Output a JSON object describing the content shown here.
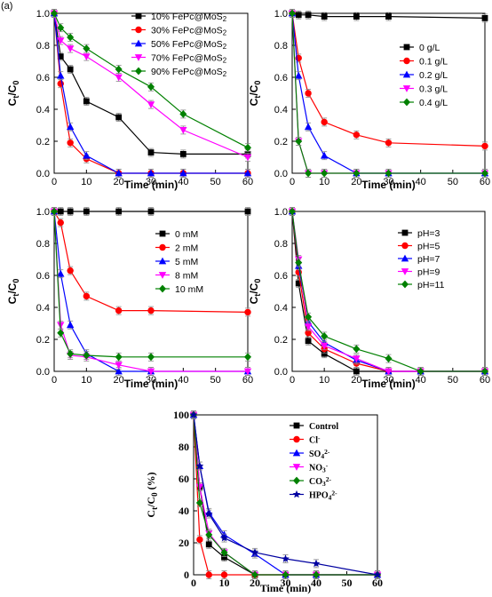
{
  "panel_label": "(a)",
  "colors": {
    "black": "#000000",
    "red": "#ff0000",
    "blue": "#0000ff",
    "magenta": "#ff00ff",
    "green": "#008000",
    "navy": "#0000a0"
  },
  "chart_data": [
    {
      "type": "line",
      "xlabel": "Time (min)",
      "ylabel": "Ct/C0",
      "xlim": [
        0,
        60
      ],
      "ylim": [
        0,
        1.0
      ],
      "xticks": [
        0,
        10,
        20,
        30,
        40,
        50,
        60
      ],
      "yticks": [
        0.0,
        0.2,
        0.4,
        0.6,
        0.8,
        1.0
      ],
      "legend_position": "top-right",
      "series": [
        {
          "name": "10% FePc@MoS2",
          "color": "#000000",
          "marker": "square",
          "x": [
            0,
            2,
            5,
            10,
            20,
            30,
            40,
            60
          ],
          "y": [
            1.0,
            0.73,
            0.65,
            0.45,
            0.35,
            0.13,
            0.12,
            0.12
          ]
        },
        {
          "name": "30% FePc@MoS2",
          "color": "#ff0000",
          "marker": "circle",
          "x": [
            0,
            2,
            5,
            10,
            20,
            30,
            40,
            60
          ],
          "y": [
            1.0,
            0.56,
            0.19,
            0.09,
            0.0,
            0.0,
            0.0,
            0.0
          ]
        },
        {
          "name": "50% FePc@MoS2",
          "color": "#0000ff",
          "marker": "triangle-up",
          "x": [
            0,
            2,
            5,
            10,
            20,
            30,
            40,
            60
          ],
          "y": [
            1.0,
            0.61,
            0.29,
            0.11,
            0.0,
            0.0,
            0.0,
            0.0
          ]
        },
        {
          "name": "70% FePc@MoS2",
          "color": "#ff00ff",
          "marker": "triangle-down",
          "x": [
            0,
            2,
            5,
            10,
            20,
            30,
            40,
            60
          ],
          "y": [
            1.0,
            0.83,
            0.78,
            0.73,
            0.6,
            0.43,
            0.27,
            0.1
          ]
        },
        {
          "name": "90% FePc@MoS2",
          "color": "#008000",
          "marker": "diamond",
          "x": [
            0,
            2,
            5,
            10,
            20,
            30,
            40,
            60
          ],
          "y": [
            1.0,
            0.91,
            0.85,
            0.78,
            0.65,
            0.54,
            0.37,
            0.16
          ]
        }
      ]
    },
    {
      "type": "line",
      "xlabel": "Time (min)",
      "ylabel": "Ct/C0",
      "xlim": [
        0,
        60
      ],
      "ylim": [
        0,
        1.0
      ],
      "xticks": [
        0,
        10,
        20,
        30,
        40,
        50,
        60
      ],
      "yticks": [
        0.0,
        0.2,
        0.4,
        0.6,
        0.8,
        1.0
      ],
      "legend_position": "right",
      "series": [
        {
          "name": "0 g/L",
          "color": "#000000",
          "marker": "square",
          "x": [
            0,
            2,
            5,
            10,
            20,
            30,
            60
          ],
          "y": [
            1.0,
            0.99,
            0.99,
            0.98,
            0.98,
            0.98,
            0.97
          ]
        },
        {
          "name": "0.1 g/L",
          "color": "#ff0000",
          "marker": "circle",
          "x": [
            0,
            2,
            5,
            10,
            20,
            30,
            60
          ],
          "y": [
            1.0,
            0.72,
            0.5,
            0.32,
            0.24,
            0.19,
            0.17
          ]
        },
        {
          "name": "0.2 g/L",
          "color": "#0000ff",
          "marker": "triangle-up",
          "x": [
            0,
            2,
            5,
            10,
            20,
            30,
            60
          ],
          "y": [
            1.0,
            0.61,
            0.29,
            0.11,
            0.0,
            0.0,
            0.0
          ]
        },
        {
          "name": "0.3 g/L",
          "color": "#ff00ff",
          "marker": "triangle-down",
          "x": [
            0,
            2,
            5,
            10,
            20,
            30,
            60
          ],
          "y": [
            1.0,
            0.2,
            0.0,
            0.0,
            0.0,
            0.0,
            0.0
          ]
        },
        {
          "name": "0.4 g/L",
          "color": "#008000",
          "marker": "diamond",
          "x": [
            0,
            2,
            5,
            10,
            20,
            30,
            60
          ],
          "y": [
            1.0,
            0.2,
            0.0,
            0.0,
            0.0,
            0.0,
            0.0
          ]
        }
      ]
    },
    {
      "type": "line",
      "xlabel": "Time (min)",
      "ylabel": "Ct/C0",
      "xlim": [
        0,
        60
      ],
      "ylim": [
        0,
        1.0
      ],
      "xticks": [
        0,
        10,
        20,
        30,
        40,
        50,
        60
      ],
      "yticks": [
        0.0,
        0.2,
        0.4,
        0.6,
        0.8,
        1.0
      ],
      "legend_position": "right",
      "series": [
        {
          "name": "0 mM",
          "color": "#000000",
          "marker": "square",
          "x": [
            0,
            2,
            5,
            10,
            20,
            30,
            60
          ],
          "y": [
            1.0,
            1.0,
            1.0,
            1.0,
            1.0,
            1.0,
            1.0
          ]
        },
        {
          "name": "2 mM",
          "color": "#ff0000",
          "marker": "circle",
          "x": [
            0,
            2,
            5,
            10,
            20,
            30,
            60
          ],
          "y": [
            1.0,
            0.93,
            0.63,
            0.47,
            0.38,
            0.38,
            0.37
          ]
        },
        {
          "name": "5 mM",
          "color": "#0000ff",
          "marker": "triangle-up",
          "x": [
            0,
            2,
            5,
            10,
            20,
            30,
            60
          ],
          "y": [
            1.0,
            0.61,
            0.29,
            0.11,
            0.0,
            0.0,
            0.0
          ]
        },
        {
          "name": "8 mM",
          "color": "#ff00ff",
          "marker": "triangle-down",
          "x": [
            0,
            2,
            5,
            10,
            20,
            30,
            60
          ],
          "y": [
            1.0,
            0.29,
            0.1,
            0.09,
            0.04,
            0.0,
            0.0
          ]
        },
        {
          "name": "10 mM",
          "color": "#008000",
          "marker": "diamond",
          "x": [
            0,
            2,
            5,
            10,
            20,
            30,
            60
          ],
          "y": [
            1.0,
            0.24,
            0.11,
            0.1,
            0.09,
            0.09,
            0.09
          ]
        }
      ]
    },
    {
      "type": "line",
      "xlabel": "Time (min)",
      "ylabel": "Ct/C0",
      "xlim": [
        0,
        60
      ],
      "ylim": [
        0,
        1.0
      ],
      "xticks": [
        0,
        10,
        20,
        30,
        40,
        50,
        60
      ],
      "yticks": [
        0.0,
        0.2,
        0.4,
        0.6,
        0.8,
        1.0
      ],
      "legend_position": "top-right",
      "series": [
        {
          "name": "pH=3",
          "color": "#000000",
          "marker": "square",
          "x": [
            0,
            2,
            5,
            10,
            20,
            30,
            40,
            60
          ],
          "y": [
            1.0,
            0.55,
            0.19,
            0.11,
            0.0,
            0.0,
            0.0,
            0.0
          ]
        },
        {
          "name": "pH=5",
          "color": "#ff0000",
          "marker": "circle",
          "x": [
            0,
            2,
            5,
            10,
            20,
            30,
            40,
            60
          ],
          "y": [
            1.0,
            0.62,
            0.24,
            0.14,
            0.05,
            0.0,
            0.0,
            0.0
          ]
        },
        {
          "name": "pH=7",
          "color": "#0000ff",
          "marker": "triangle-up",
          "x": [
            0,
            2,
            5,
            10,
            20,
            30,
            40,
            60
          ],
          "y": [
            1.0,
            0.66,
            0.31,
            0.18,
            0.07,
            0.0,
            0.0,
            0.0
          ]
        },
        {
          "name": "pH=9",
          "color": "#ff00ff",
          "marker": "triangle-down",
          "x": [
            0,
            2,
            5,
            10,
            20,
            30,
            40,
            60
          ],
          "y": [
            1.0,
            0.7,
            0.28,
            0.16,
            0.08,
            0.0,
            0.0,
            0.0
          ]
        },
        {
          "name": "pH=11",
          "color": "#008000",
          "marker": "diamond",
          "x": [
            0,
            2,
            5,
            10,
            20,
            30,
            40,
            60
          ],
          "y": [
            1.0,
            0.68,
            0.34,
            0.22,
            0.14,
            0.08,
            0.0,
            0.0
          ]
        }
      ]
    },
    {
      "type": "line",
      "xlabel": "Time (min)",
      "ylabel": "Ct/C0 (%)",
      "xlim": [
        0,
        60
      ],
      "ylim": [
        0,
        100
      ],
      "xticks": [
        0,
        10,
        20,
        30,
        40,
        50,
        60
      ],
      "yticks": [
        0,
        20,
        40,
        60,
        80,
        100
      ],
      "legend_position": "top-right",
      "series": [
        {
          "name": "Control",
          "color": "#000000",
          "marker": "square",
          "x": [
            0,
            2,
            5,
            10,
            20,
            30,
            40,
            60
          ],
          "y": [
            100,
            55,
            19,
            11,
            0,
            0,
            0,
            0
          ]
        },
        {
          "name": "Cl-",
          "color": "#ff0000",
          "marker": "circle",
          "x": [
            0,
            2,
            5,
            10,
            20,
            30,
            40,
            60
          ],
          "y": [
            100,
            22,
            0,
            0,
            0,
            0,
            0,
            0
          ]
        },
        {
          "name": "SO42-",
          "color": "#0000ff",
          "marker": "triangle-up",
          "x": [
            0,
            2,
            5,
            10,
            20,
            30,
            40,
            60
          ],
          "y": [
            100,
            68,
            39,
            25,
            13,
            0,
            0,
            0
          ]
        },
        {
          "name": "NO3-",
          "color": "#ff00ff",
          "marker": "triangle-down",
          "x": [
            0,
            2,
            5,
            10,
            20,
            30,
            40,
            60
          ],
          "y": [
            100,
            55,
            26,
            14,
            0,
            0,
            0,
            0
          ]
        },
        {
          "name": "CO32-",
          "color": "#008000",
          "marker": "diamond",
          "x": [
            0,
            2,
            5,
            10,
            20,
            30,
            40,
            60
          ],
          "y": [
            100,
            45,
            25,
            14,
            0,
            0,
            0,
            0
          ]
        },
        {
          "name": "HPO42-",
          "color": "#0000a0",
          "marker": "star",
          "x": [
            0,
            2,
            5,
            10,
            20,
            30,
            40,
            60
          ],
          "y": [
            100,
            68,
            38,
            23,
            14,
            10,
            7,
            0
          ]
        }
      ]
    }
  ],
  "legend_labels": [
    [
      [
        {
          "t": "10% FePc@MoS"
        },
        {
          "t": "2",
          "sub": true
        }
      ],
      [
        {
          "t": "30% FePc@MoS"
        },
        {
          "t": "2",
          "sub": true
        }
      ],
      [
        {
          "t": "50% FePc@MoS"
        },
        {
          "t": "2",
          "sub": true
        }
      ],
      [
        {
          "t": "70% FePc@MoS"
        },
        {
          "t": "2",
          "sub": true
        }
      ],
      [
        {
          "t": "90% FePc@MoS"
        },
        {
          "t": "2",
          "sub": true
        }
      ]
    ],
    [
      [
        {
          "t": "0 g/L"
        }
      ],
      [
        {
          "t": "0.1 g/L"
        }
      ],
      [
        {
          "t": "0.2 g/L"
        }
      ],
      [
        {
          "t": "0.3 g/L"
        }
      ],
      [
        {
          "t": "0.4 g/L"
        }
      ]
    ],
    [
      [
        {
          "t": "0 mM"
        }
      ],
      [
        {
          "t": "2 mM"
        }
      ],
      [
        {
          "t": "5 mM"
        }
      ],
      [
        {
          "t": "8 mM"
        }
      ],
      [
        {
          "t": "10 mM"
        }
      ]
    ],
    [
      [
        {
          "t": "pH=3"
        }
      ],
      [
        {
          "t": "pH=5"
        }
      ],
      [
        {
          "t": "pH=7"
        }
      ],
      [
        {
          "t": "pH=9"
        }
      ],
      [
        {
          "t": "pH=11"
        }
      ]
    ],
    [
      [
        {
          "t": "Control"
        }
      ],
      [
        {
          "t": "Cl"
        },
        {
          "t": "-",
          "sup": true
        }
      ],
      [
        {
          "t": "SO"
        },
        {
          "t": "4",
          "sub": true
        },
        {
          "t": "2-",
          "sup": true
        }
      ],
      [
        {
          "t": "NO"
        },
        {
          "t": "3",
          "sub": true
        },
        {
          "t": "-",
          "sup": true
        }
      ],
      [
        {
          "t": "CO"
        },
        {
          "t": "3",
          "sub": true
        },
        {
          "t": "2-",
          "sup": true
        }
      ],
      [
        {
          "t": "HPO"
        },
        {
          "t": "4",
          "sub": true
        },
        {
          "t": "2-",
          "sup": true
        }
      ]
    ]
  ]
}
